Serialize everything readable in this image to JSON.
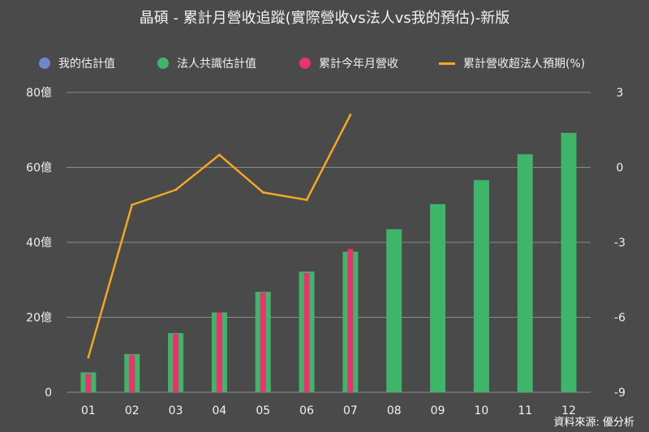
{
  "title": "晶碩 - 累計月營收追蹤(實際營收vs法人vs我的預估)-新版",
  "source": "資料來源: 優分析",
  "colors": {
    "background": "#4a4a4a",
    "my_estimate": "#6f86c9",
    "consensus": "#3fb56a",
    "actual": "#e8336c",
    "excess": "#f5a623",
    "grid": "#8a8a8a"
  },
  "legend": [
    {
      "label": "我的估計值",
      "type": "dot",
      "color": "#6f86c9"
    },
    {
      "label": "法人共識估計值",
      "type": "dot",
      "color": "#3fb56a"
    },
    {
      "label": "累計今年月營收",
      "type": "dot",
      "color": "#e8336c"
    },
    {
      "label": "累計營收超法人預期(%)",
      "type": "line",
      "color": "#f5a623"
    }
  ],
  "chart_data": {
    "type": "bar",
    "categories": [
      "01",
      "02",
      "03",
      "04",
      "05",
      "06",
      "07",
      "08",
      "09",
      "10",
      "11",
      "12"
    ],
    "left_axis": {
      "ticks": [
        "0",
        "20億",
        "40億",
        "60億",
        "80億"
      ],
      "tick_values": [
        0,
        20,
        40,
        60,
        80
      ],
      "ylim": [
        0,
        80
      ],
      "unit": "億"
    },
    "right_axis": {
      "ticks": [
        "-9",
        "-6",
        "-3",
        "0",
        "3"
      ],
      "tick_values": [
        -9,
        -6,
        -3,
        0,
        3
      ],
      "ylim": [
        -9,
        3
      ]
    },
    "series": [
      {
        "name": "法人共識估計值",
        "type": "bar",
        "axis": "left",
        "values": [
          5.3,
          10.2,
          15.8,
          21.3,
          26.8,
          32.2,
          37.5,
          43.5,
          50.2,
          56.6,
          63.5,
          69.2
        ]
      },
      {
        "name": "累計今年月營收",
        "type": "bar",
        "axis": "left",
        "values": [
          4.9,
          10.0,
          15.6,
          21.3,
          26.6,
          31.8,
          38.2,
          null,
          null,
          null,
          null,
          null
        ]
      },
      {
        "name": "累計營收超法人預期(%)",
        "type": "line",
        "axis": "right",
        "values": [
          -7.6,
          -1.5,
          -0.9,
          0.5,
          -1.0,
          -1.3,
          2.1,
          null,
          null,
          null,
          null,
          null
        ]
      }
    ],
    "grid": true,
    "legend_position": "top"
  }
}
